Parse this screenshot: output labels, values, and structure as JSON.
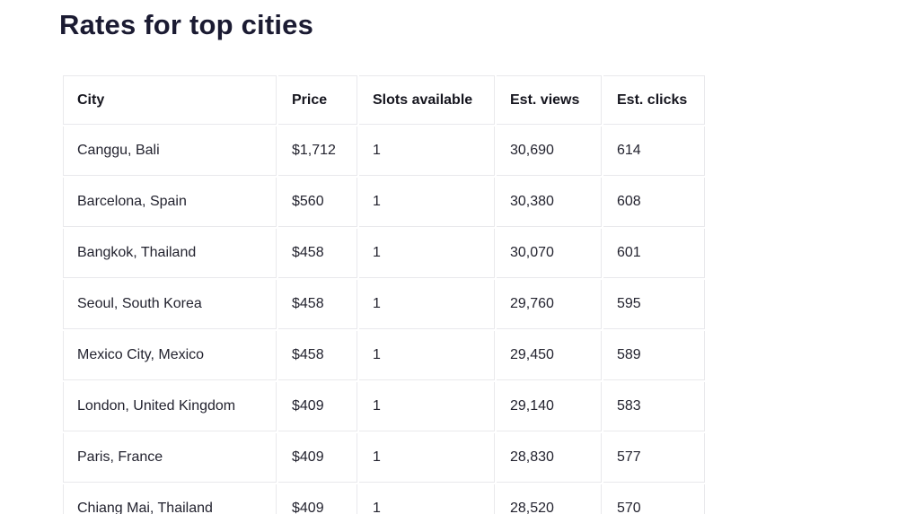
{
  "page": {
    "title": "Rates for top cities"
  },
  "colors": {
    "background": "#ffffff",
    "title_text": "#1b1b32",
    "header_text": "#15151e",
    "body_text": "#23232f",
    "table_border": "#e9e9ec"
  },
  "table": {
    "columns": [
      {
        "key": "city",
        "label": "City"
      },
      {
        "key": "price",
        "label": "Price"
      },
      {
        "key": "slots",
        "label": "Slots available"
      },
      {
        "key": "views",
        "label": "Est. views"
      },
      {
        "key": "clicks",
        "label": "Est. clicks"
      }
    ],
    "rows": [
      {
        "city": "Canggu, Bali",
        "price": "$1,712",
        "slots": "1",
        "views": "30,690",
        "clicks": "614"
      },
      {
        "city": "Barcelona, Spain",
        "price": "$560",
        "slots": "1",
        "views": "30,380",
        "clicks": "608"
      },
      {
        "city": "Bangkok, Thailand",
        "price": "$458",
        "slots": "1",
        "views": "30,070",
        "clicks": "601"
      },
      {
        "city": "Seoul, South Korea",
        "price": "$458",
        "slots": "1",
        "views": "29,760",
        "clicks": "595"
      },
      {
        "city": "Mexico City, Mexico",
        "price": "$458",
        "slots": "1",
        "views": "29,450",
        "clicks": "589"
      },
      {
        "city": "London, United Kingdom",
        "price": "$409",
        "slots": "1",
        "views": "29,140",
        "clicks": "583"
      },
      {
        "city": "Paris, France",
        "price": "$409",
        "slots": "1",
        "views": "28,830",
        "clicks": "577"
      },
      {
        "city": "Chiang Mai, Thailand",
        "price": "$409",
        "slots": "1",
        "views": "28,520",
        "clicks": "570"
      }
    ]
  }
}
